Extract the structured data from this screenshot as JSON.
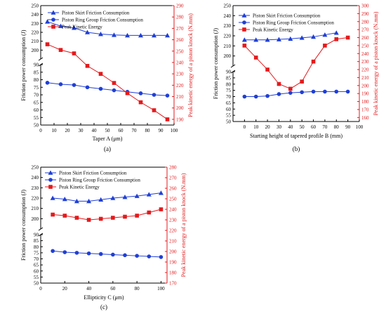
{
  "colors": {
    "piston_skirt": "#1f3fd6",
    "piston_ring": "#1f3fd6",
    "kinetic": "#e31a1c",
    "axis_left": "#000000",
    "axis_right": "#e31a1c"
  },
  "chart_data": [
    {
      "type": "line",
      "panel_label": "(a)",
      "xlabel": "Taper A (μm)",
      "ylabel_left": "Friction power consumption (J)",
      "ylabel_right": "Peak kinetic energy of a piston knock (N.mm)",
      "xlim": [
        0,
        100
      ],
      "xticks": [
        0,
        10,
        20,
        30,
        40,
        50,
        60,
        70,
        80,
        90,
        100
      ],
      "ylim_left_lower": [
        50,
        90
      ],
      "yticks_left_lower": [
        50,
        55,
        60,
        65,
        70,
        75,
        80,
        85,
        90
      ],
      "ylim_left_upper": [
        190,
        250
      ],
      "yticks_left_upper": [
        200,
        210,
        220,
        230,
        240,
        250
      ],
      "ylim_right": [
        185,
        290
      ],
      "yticks_right": [
        190,
        200,
        210,
        220,
        230,
        240,
        250,
        260,
        270,
        280,
        290
      ],
      "legend": [
        "Piston Skirt Friction Consumption",
        "Piston Ring Group Friction Consumption",
        "Peak Kinetic Energy"
      ],
      "legend_position": "top-right",
      "series": [
        {
          "name": "Piston Skirt Friction Consumption",
          "axis": "left",
          "marker": "triangle",
          "x": [
            5,
            15,
            25,
            35,
            45,
            55,
            65,
            75,
            85,
            95
          ],
          "values": [
            232,
            227,
            225,
            220,
            218,
            217,
            216.5,
            216.5,
            216.5,
            216.5
          ]
        },
        {
          "name": "Piston Ring Group Friction Consumption",
          "axis": "left",
          "marker": "circle",
          "x": [
            5,
            15,
            25,
            35,
            45,
            55,
            65,
            75,
            85,
            95
          ],
          "values": [
            78,
            77,
            76.5,
            75,
            74,
            73,
            72,
            71,
            70,
            69.5
          ]
        },
        {
          "name": "Peak Kinetic Energy",
          "axis": "right",
          "marker": "square",
          "x": [
            5,
            15,
            25,
            35,
            45,
            55,
            65,
            75,
            85,
            95
          ],
          "values": [
            256,
            251,
            248,
            237,
            230,
            222,
            213,
            205,
            198,
            190
          ]
        }
      ]
    },
    {
      "type": "line",
      "panel_label": "(b)",
      "xlabel": "Starting height of tapered profile B (mm)",
      "ylabel_left": "Friction power consumption (J)",
      "ylabel_right": "Peak kinetic energy of a piston knock (N.mm)",
      "xlim": [
        -10,
        100
      ],
      "xticks": [
        0,
        10,
        20,
        30,
        40,
        50,
        60,
        70,
        80,
        90,
        100
      ],
      "ylim_left_lower": [
        50,
        90
      ],
      "yticks_left_lower": [
        50,
        55,
        60,
        65,
        70,
        75,
        80,
        85,
        90
      ],
      "ylim_left_upper": [
        190,
        250
      ],
      "yticks_left_upper": [
        200,
        210,
        220,
        230,
        240,
        250
      ],
      "ylim_right": [
        155,
        300
      ],
      "yticks_right": [
        160,
        170,
        180,
        190,
        200,
        210,
        220,
        230,
        240,
        250,
        260,
        270,
        280,
        290,
        300
      ],
      "legend": [
        "Piston Skirt Friction Consumption",
        "Piston Ring Group Friction Consumption",
        "Peak Kinetic Energy"
      ],
      "legend_position": "top-right",
      "series": [
        {
          "name": "Piston Skirt Friction Consumption",
          "axis": "left",
          "marker": "triangle",
          "x": [
            0,
            10,
            20,
            30,
            40,
            50,
            60,
            70,
            80
          ],
          "values": [
            216,
            216,
            216,
            216.5,
            217,
            218,
            219,
            221,
            223
          ]
        },
        {
          "name": "Piston Ring Group Friction Consumption",
          "axis": "left",
          "marker": "circle",
          "x": [
            0,
            10,
            20,
            30,
            40,
            50,
            60,
            70,
            80,
            90
          ],
          "values": [
            70,
            70,
            70.5,
            72,
            73,
            73.5,
            74,
            74,
            74,
            74
          ]
        },
        {
          "name": "Peak Kinetic Energy",
          "axis": "right",
          "marker": "square",
          "x": [
            0,
            10,
            20,
            30,
            40,
            50,
            60,
            70,
            80,
            90
          ],
          "values": [
            250,
            235,
            220,
            202,
            196,
            205,
            230,
            250,
            258,
            260
          ]
        }
      ]
    },
    {
      "type": "line",
      "panel_label": "(c)",
      "xlabel": "Ellipticity C (μm)",
      "ylabel_left": "Friction power consumption (J)",
      "ylabel_right": "Peak kinetic energy of a piston knock (N.mm)",
      "xlim": [
        0,
        105
      ],
      "xticks": [
        0,
        20,
        40,
        60,
        80,
        100
      ],
      "ylim_left_lower": [
        50,
        90
      ],
      "yticks_left_lower": [
        50,
        55,
        60,
        65,
        70,
        75,
        80,
        85,
        90
      ],
      "ylim_left_upper": [
        190,
        250
      ],
      "yticks_left_upper": [
        200,
        210,
        220,
        230,
        240,
        250
      ],
      "ylim_right": [
        170,
        280
      ],
      "yticks_right": [
        170,
        180,
        190,
        200,
        210,
        220,
        230,
        240,
        250,
        260,
        270,
        280
      ],
      "legend": [
        "Piston Skirt Friction Consumption",
        "Piston Ring Group Friction Consumption",
        "Peak Kinetic Energy"
      ],
      "legend_position": "top-left",
      "series": [
        {
          "name": "Piston Skirt Friction Consumption",
          "axis": "left",
          "marker": "triangle",
          "x": [
            10,
            20,
            30,
            40,
            50,
            60,
            70,
            80,
            90,
            100
          ],
          "values": [
            220,
            219,
            217,
            217,
            218.5,
            220,
            221,
            222,
            223.5,
            225
          ]
        },
        {
          "name": "Piston Ring Group Friction Consumption",
          "axis": "left",
          "marker": "circle",
          "x": [
            10,
            20,
            30,
            40,
            50,
            60,
            70,
            80,
            90,
            100
          ],
          "values": [
            76.5,
            75.5,
            75,
            74.5,
            74,
            73.5,
            73,
            72.5,
            72,
            71.5
          ]
        },
        {
          "name": "Peak Kinetic Energy",
          "axis": "right",
          "marker": "square",
          "x": [
            10,
            20,
            30,
            40,
            50,
            60,
            70,
            80,
            90,
            100
          ],
          "values": [
            235,
            234,
            232,
            230,
            231,
            232,
            233,
            234,
            237,
            240
          ]
        }
      ]
    }
  ]
}
